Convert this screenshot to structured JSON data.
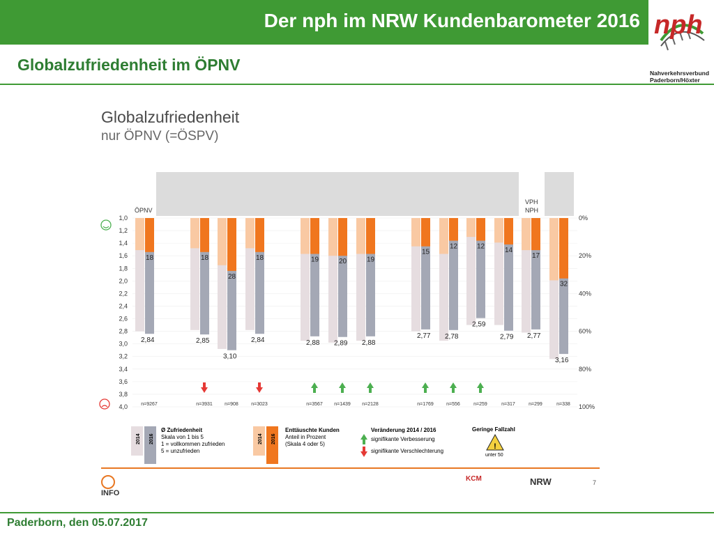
{
  "header": {
    "title": "Der nph im NRW Kundenbarometer 2016"
  },
  "subtitle": "Globalzufriedenheit im ÖPNV",
  "logo": {
    "line1": "Nahverkehrsverbund",
    "line2": "Paderborn/Höxter",
    "mark": "nph"
  },
  "footer": {
    "text": "Paderborn, den 05.07.2017"
  },
  "slide": {
    "title": "Globalzufriedenheit",
    "subtitle": "nur ÖPNV (=ÖSPV)",
    "page": "7",
    "logos": {
      "info": "INFO",
      "kcm": "KCM",
      "nrw": "NRW"
    }
  },
  "colors": {
    "green": "#3f9a34",
    "orange": "#f0761e",
    "light_orange": "#f9c9a3",
    "gray": "#a4a8b5",
    "light_gray": "#e6dde0"
  },
  "chart_data": {
    "type": "bar",
    "left_axis": {
      "ticks": [
        "1,0",
        "1,2",
        "1,4",
        "1,6",
        "1,8",
        "2,0",
        "2,2",
        "2,4",
        "2,6",
        "2,8",
        "3,0",
        "3,2",
        "3,4",
        "3,6",
        "3,8",
        "4,0"
      ],
      "ylim": [
        1.0,
        4.0
      ]
    },
    "right_axis": {
      "ticks": [
        "0%",
        "20%",
        "40%",
        "60%",
        "80%",
        "100%"
      ],
      "ylim": [
        0,
        100
      ]
    },
    "group_labels": {
      "oepnv": "ÖPNV",
      "vph": "VPH",
      "nph": "NPH"
    },
    "series": [
      {
        "name": "Ø Zufriedenheit 2016",
        "values": [
          2.84,
          2.85,
          3.1,
          2.84,
          2.88,
          2.89,
          2.88,
          2.77,
          2.78,
          2.59,
          2.79,
          2.77,
          3.16
        ]
      },
      {
        "name": "Ø Zufriedenheit 2014",
        "values": [
          2.8,
          2.78,
          3.08,
          2.78,
          2.95,
          2.98,
          2.95,
          2.8,
          2.95,
          2.7,
          2.7,
          2.82,
          3.24
        ]
      },
      {
        "name": "Enttäuschte Kunden 2016 (%)",
        "values": [
          18,
          18,
          28,
          18,
          19,
          20,
          19,
          15,
          12,
          12,
          14,
          17,
          32
        ]
      },
      {
        "name": "Enttäuschte Kunden 2014 (%)",
        "values": [
          17,
          16,
          25,
          16,
          19,
          20,
          19,
          15,
          19,
          10,
          13,
          17,
          33
        ]
      }
    ],
    "value_labels": [
      "2,84",
      "2,85",
      "3,10",
      "2,84",
      "2,88",
      "2,89",
      "2,88",
      "2,77",
      "2,78",
      "2,59",
      "2,79",
      "2,77",
      "3,16"
    ],
    "pct_labels": [
      "18",
      "18",
      "28",
      "18",
      "19",
      "20",
      "19",
      "15",
      "12",
      "12",
      "14",
      "17",
      "32"
    ],
    "n_labels": [
      "n=9267",
      "n=3931",
      "n=908",
      "n=3023",
      "n=3567",
      "n=1439",
      "n=2128",
      "n=1769",
      "n=556",
      "n=259",
      "n=317",
      "n=299",
      "n=338"
    ],
    "change": [
      "none",
      "down",
      "none",
      "down",
      "up",
      "up",
      "up",
      "up",
      "up",
      "up",
      "none",
      "none",
      "none"
    ],
    "legend": {
      "y2014": "2014",
      "y2016": "2016",
      "zuf_title": "Ø Zufriedenheit",
      "zuf_l1": "Skala von 1 bis 5",
      "zuf_l2": "1 = vollkommen zufrieden",
      "zuf_l3": "5 = unzufrieden",
      "ent_title": "Enttäuschte Kunden",
      "ent_l1": "Anteil in Prozent",
      "ent_l2": "(Skala 4 oder 5)",
      "ver_title": "Veränderung 2014 / 2016",
      "ver_up": "signifikante Verbesserung",
      "ver_down": "signifikante Verschlechterung",
      "small_title": "Geringe Fallzahl",
      "small_sub": "unter 50"
    }
  }
}
